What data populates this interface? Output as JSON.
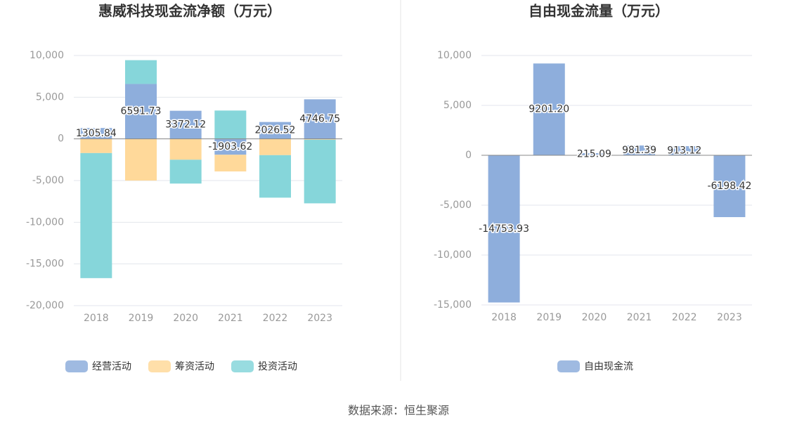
{
  "chart_data": [
    {
      "type": "bar",
      "title": "惠威科技现金流净额（万元）",
      "categories": [
        "2018",
        "2019",
        "2020",
        "2021",
        "2022",
        "2023"
      ],
      "series": [
        {
          "name": "经营活动",
          "color": "#8eaedc",
          "values": [
            1305.84,
            6591.73,
            3372.12,
            -1903.62,
            2026.52,
            4746.75
          ]
        },
        {
          "name": "筹资活动",
          "color": "#ffd99a",
          "values": [
            -1700,
            -5000,
            -2500,
            -2000,
            -1950,
            -100
          ]
        },
        {
          "name": "投资活动",
          "color": "#86d6da",
          "values": [
            -15000,
            2850,
            -2860,
            3400,
            -5100,
            -7630
          ]
        }
      ],
      "ylim": [
        -20000,
        10000
      ],
      "yticks": [
        {
          "value": -20000,
          "label": "-20,000"
        },
        {
          "value": -15000,
          "label": "-15,000"
        },
        {
          "value": -10000,
          "label": "-10,000"
        },
        {
          "value": -5000,
          "label": "-5,000"
        },
        0,
        {
          "value": 5000,
          "label": "5,000"
        },
        {
          "value": 10000,
          "label": "10,000"
        }
      ],
      "grid": true
    },
    {
      "type": "bar",
      "title": "自由现金流量（万元）",
      "categories": [
        "2018",
        "2019",
        "2020",
        "2021",
        "2022",
        "2023"
      ],
      "series": [
        {
          "name": "自由现金流",
          "color": "#8eaedc",
          "values": [
            -14753.93,
            9201.2,
            215.09,
            981.39,
            913.12,
            -6198.42
          ],
          "value_labels": [
            "-14753.93",
            "9201.20",
            "215.09",
            "981.39",
            "913.12",
            "-6198.42"
          ]
        }
      ],
      "ylim": [
        -15000,
        10000
      ],
      "yticks": [
        {
          "value": -15000,
          "label": "-15,000"
        },
        {
          "value": -10000,
          "label": "-10,000"
        },
        {
          "value": -5000,
          "label": "-5,000"
        },
        0,
        {
          "value": 5000,
          "label": "5,000"
        },
        {
          "value": 10000,
          "label": "10,000"
        }
      ],
      "grid": true
    }
  ],
  "source": "数据来源：恒生聚源"
}
